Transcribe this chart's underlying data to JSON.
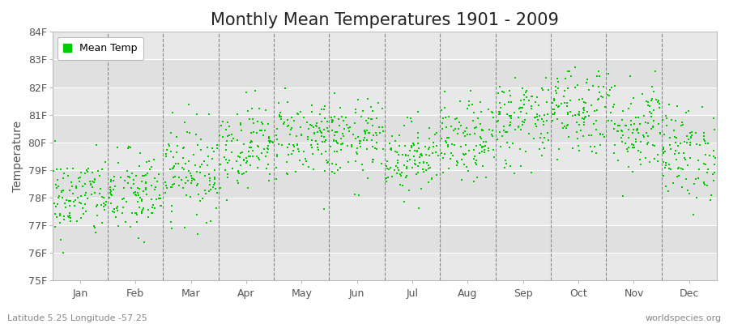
{
  "title": "Monthly Mean Temperatures 1901 - 2009",
  "ylabel": "Temperature",
  "ylabel_color": "#555555",
  "background_color": "#ffffff",
  "plot_bg_color": "#eeeeee",
  "band_color_light": "#e8e8e8",
  "band_color_dark": "#d8d8d8",
  "dot_color": "#00cc00",
  "dot_size": 3,
  "ylim": [
    75,
    84
  ],
  "yticks": [
    75,
    76,
    77,
    78,
    79,
    80,
    81,
    82,
    83,
    84
  ],
  "ytick_labels": [
    "75F",
    "76F",
    "77F",
    "78F",
    "79F",
    "80F",
    "81F",
    "82F",
    "83F",
    "84F"
  ],
  "months": [
    "Jan",
    "Feb",
    "Mar",
    "Apr",
    "May",
    "Jun",
    "Jul",
    "Aug",
    "Sep",
    "Oct",
    "Nov",
    "Dec"
  ],
  "n_years": 109,
  "seed": 42,
  "subtitle_left": "Latitude 5.25 Longitude -57.25",
  "subtitle_right": "worldspecies.org",
  "title_fontsize": 15,
  "axis_label_fontsize": 10,
  "tick_fontsize": 9,
  "legend_label": "Mean Temp",
  "month_means": [
    78.0,
    78.1,
    79.0,
    79.9,
    80.2,
    80.1,
    79.5,
    80.0,
    80.8,
    81.2,
    80.6,
    79.6
  ],
  "month_stds": [
    0.75,
    0.8,
    0.85,
    0.75,
    0.75,
    0.7,
    0.65,
    0.72,
    0.85,
    0.85,
    0.9,
    0.85
  ]
}
